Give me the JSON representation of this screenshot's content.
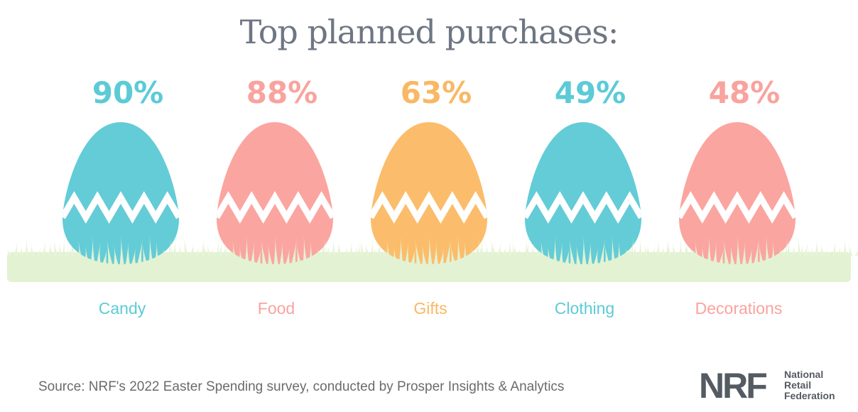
{
  "chart_data": {
    "type": "bar",
    "title": "Top planned purchases:",
    "categories": [
      "Candy",
      "Food",
      "Gifts",
      "Clothing",
      "Decorations"
    ],
    "values": [
      90,
      88,
      63,
      49,
      48
    ],
    "value_labels": [
      "90%",
      "88%",
      "63%",
      "49%",
      "48%"
    ],
    "colors": [
      "#63ccd7",
      "#fba5a0",
      "#fbbd6b",
      "#63ccd7",
      "#fba5a0"
    ],
    "label_colors": [
      "#5ccbd6",
      "#f9a39e",
      "#f9b864",
      "#5ccbd6",
      "#f9a39e"
    ]
  },
  "source": "Source: NRF's 2022 Easter Spending survey, conducted by Prosper Insights & Analytics",
  "logo": {
    "mark": "NRF",
    "line1": "National",
    "line2": "Retail",
    "line3": "Federation"
  }
}
